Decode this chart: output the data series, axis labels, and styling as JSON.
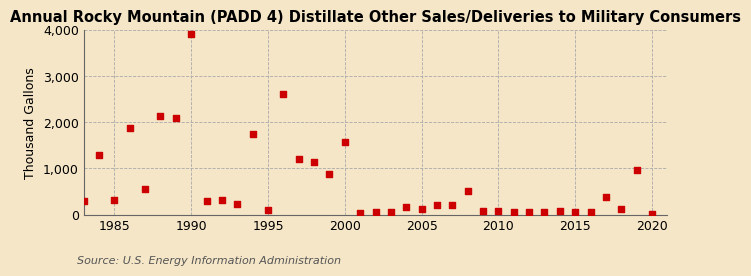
{
  "title": "Annual Rocky Mountain (PADD 4) Distillate Other Sales/Deliveries to Military Consumers",
  "ylabel": "Thousand Gallons",
  "source": "Source: U.S. Energy Information Administration",
  "background_color": "#f5e6c8",
  "plot_background_color": "#f5e6c8",
  "marker_color": "#cc0000",
  "years": [
    1983,
    1984,
    1985,
    1986,
    1987,
    1988,
    1989,
    1990,
    1991,
    1992,
    1993,
    1994,
    1995,
    1996,
    1997,
    1998,
    1999,
    2000,
    2001,
    2002,
    2003,
    2004,
    2005,
    2006,
    2007,
    2008,
    2009,
    2010,
    2011,
    2012,
    2013,
    2014,
    2015,
    2016,
    2017,
    2018,
    2019,
    2020
  ],
  "values": [
    300,
    1300,
    310,
    1880,
    560,
    2140,
    2100,
    3920,
    300,
    310,
    240,
    1750,
    90,
    2620,
    1200,
    1140,
    890,
    1580,
    30,
    50,
    50,
    170,
    120,
    200,
    210,
    520,
    80,
    80,
    60,
    60,
    60,
    70,
    50,
    60,
    380,
    130,
    970,
    10
  ],
  "xlim": [
    1983,
    2021
  ],
  "ylim": [
    0,
    4000
  ],
  "yticks": [
    0,
    1000,
    2000,
    3000,
    4000
  ],
  "xticks": [
    1985,
    1990,
    1995,
    2000,
    2005,
    2010,
    2015,
    2020
  ],
  "grid_color": "#aaaaaa",
  "title_fontsize": 10.5,
  "axis_fontsize": 9,
  "source_fontsize": 8,
  "marker_size": 18
}
